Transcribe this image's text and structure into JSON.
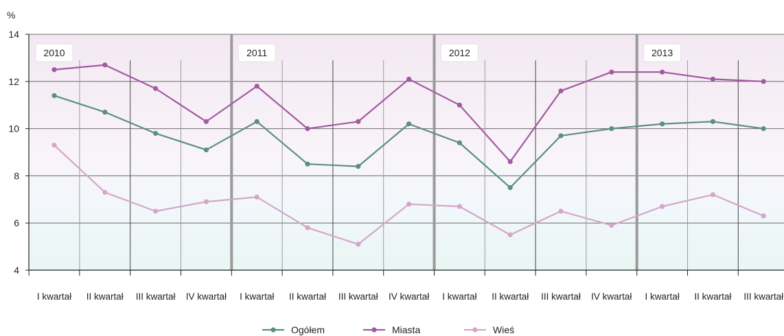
{
  "chart_data": {
    "type": "line",
    "ylabel": "%",
    "ylim": [
      4,
      14
    ],
    "yticks": [
      4,
      6,
      8,
      10,
      12,
      14
    ],
    "categories": [
      "I kwartał",
      "II kwartał",
      "III kwartał",
      "IV kwartał",
      "I kwartał",
      "II kwartał",
      "III kwartał",
      "IV kwartał",
      "I kwartał",
      "II kwartał",
      "III kwartał",
      "IV kwartał",
      "I kwartał",
      "II kwartał",
      "III kwartał"
    ],
    "years": [
      {
        "label": "2010",
        "start_index": 0
      },
      {
        "label": "2011",
        "start_index": 4
      },
      {
        "label": "2012",
        "start_index": 8
      },
      {
        "label": "2013",
        "start_index": 12
      }
    ],
    "series": [
      {
        "name": "Ogółem",
        "color": "#5b8f80",
        "values": [
          11.4,
          10.7,
          9.8,
          9.1,
          10.3,
          8.5,
          8.4,
          10.2,
          9.4,
          7.5,
          9.7,
          10.0,
          10.2,
          10.3,
          10.0
        ]
      },
      {
        "name": "Miasta",
        "color": "#a25aa0",
        "values": [
          12.5,
          12.7,
          11.7,
          10.3,
          11.8,
          10.0,
          10.3,
          12.1,
          11.0,
          8.6,
          11.6,
          12.4,
          12.4,
          12.1,
          12.0
        ]
      },
      {
        "name": "Wieś",
        "color": "#d4a6c8",
        "values": [
          9.3,
          7.3,
          6.5,
          6.9,
          7.1,
          5.8,
          5.1,
          6.8,
          6.7,
          5.5,
          6.5,
          5.9,
          6.7,
          7.2,
          6.3
        ]
      }
    ],
    "grid": true,
    "legend_position": "bottom-center"
  }
}
